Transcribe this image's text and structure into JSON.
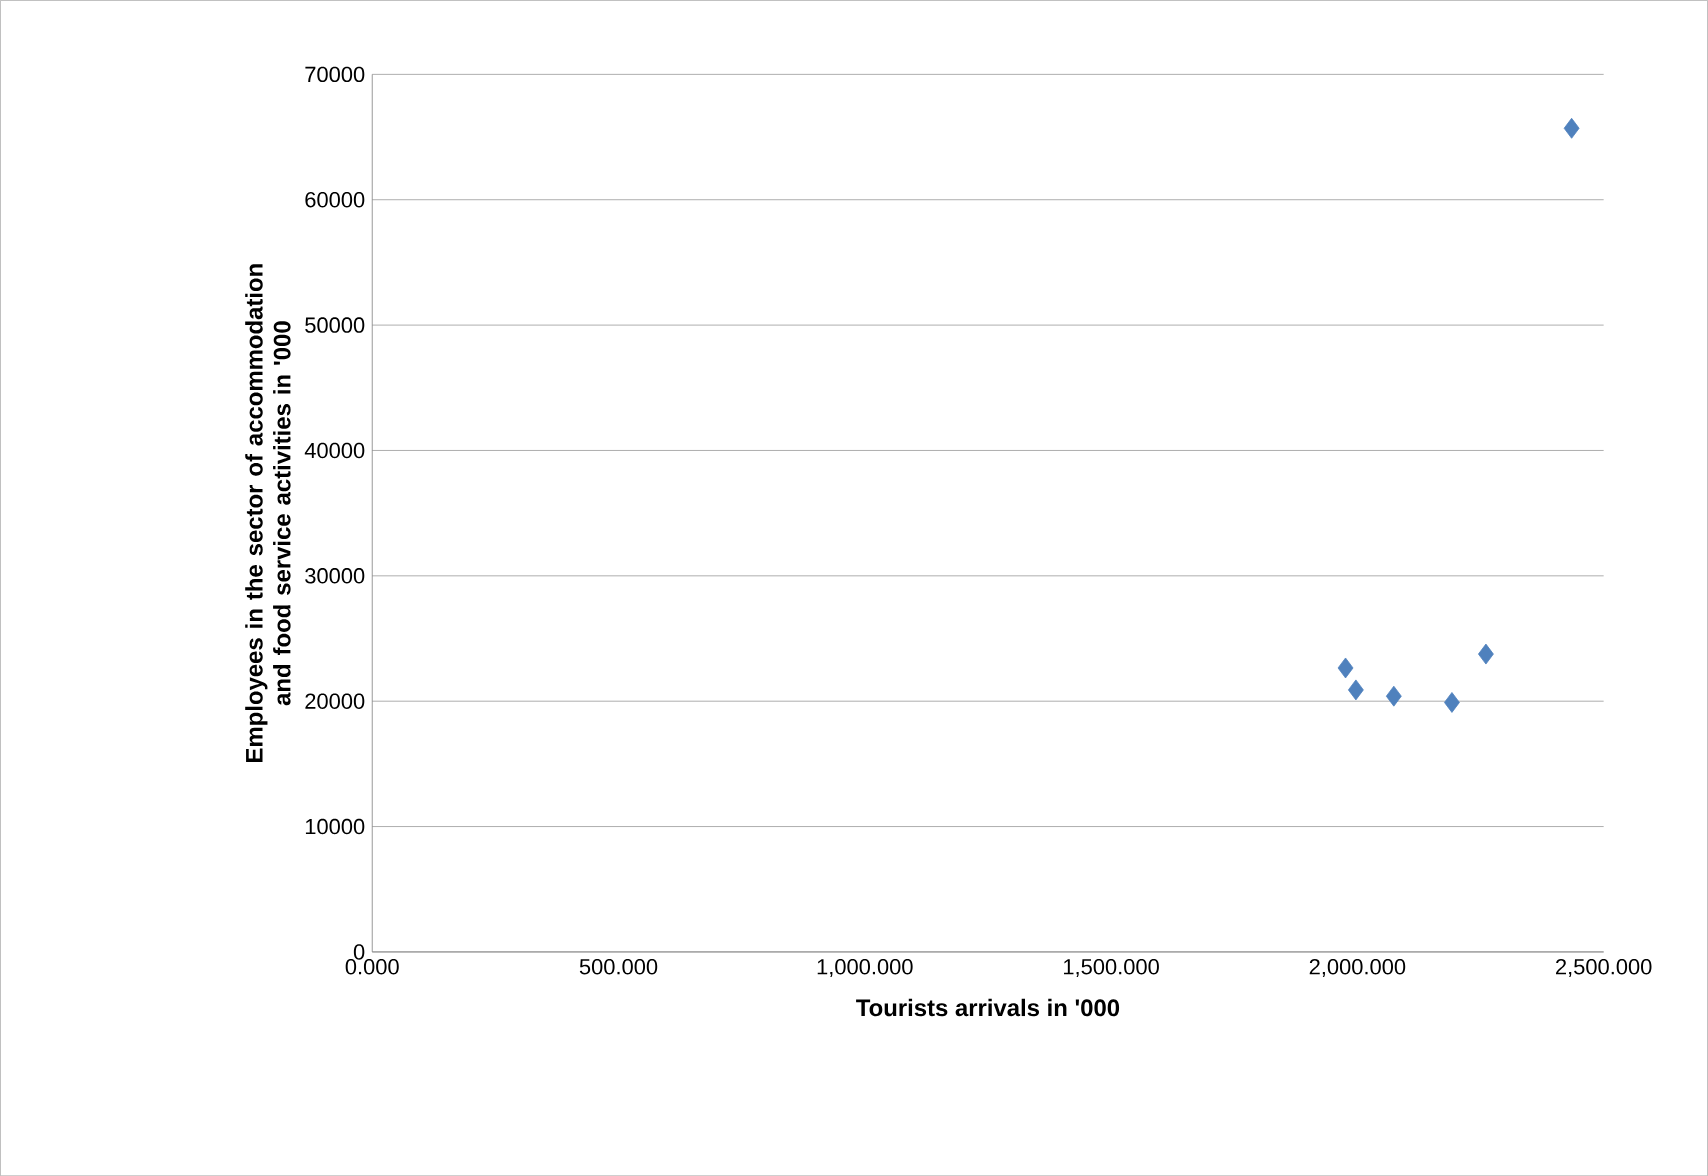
{
  "chart_data": {
    "type": "scatter",
    "xlabel": "Tourists arrivals in '000",
    "ylabel": "Employees in the sector of accommodation and food service activities in '000",
    "x": [
      1976,
      1997,
      2074,
      2192,
      2261,
      2435
    ],
    "values": [
      22650,
      20900,
      20400,
      19900,
      23760,
      65700
    ],
    "color": "#4f81bd",
    "marker": "diamond",
    "grid": "y",
    "xlim": [
      0,
      2500
    ],
    "ylim": [
      0,
      70000
    ],
    "xticks": [
      {
        "value": 0,
        "label": "0.000"
      },
      {
        "value": 500,
        "label": "500.000"
      },
      {
        "value": 1000,
        "label": "1,000.000"
      },
      {
        "value": 1500,
        "label": "1,500.000"
      },
      {
        "value": 2000,
        "label": "2,000.000"
      },
      {
        "value": 2500,
        "label": "2,500.000"
      }
    ],
    "yticks": [
      0,
      10000,
      20000,
      30000,
      40000,
      50000,
      60000,
      70000
    ]
  }
}
